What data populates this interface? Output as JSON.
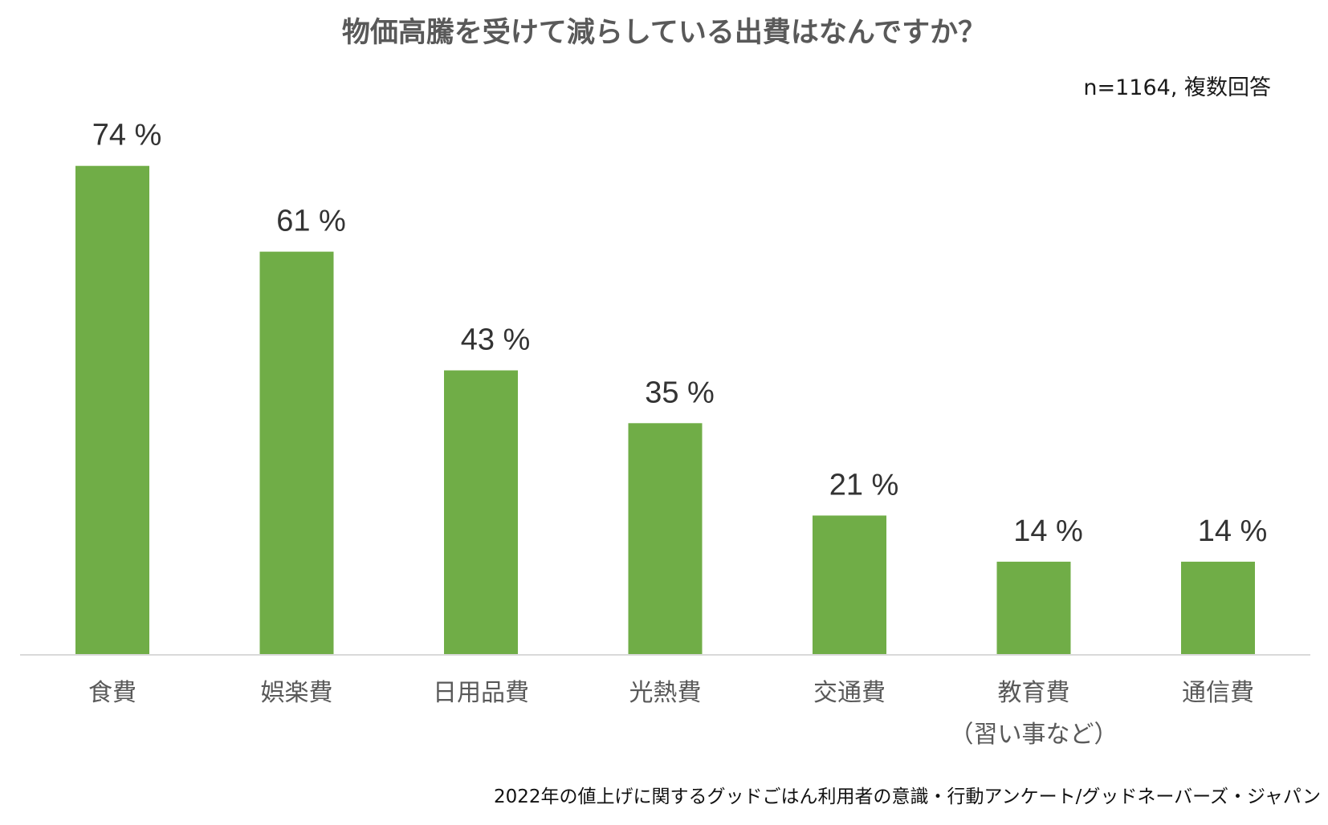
{
  "chart_data": {
    "type": "bar",
    "title": "物価高騰を受けて減らしている出費はなんですか？",
    "note": "n=1164, 複数回答",
    "categories": [
      [
        "食費"
      ],
      [
        "娯楽費"
      ],
      [
        "日用品費"
      ],
      [
        "光熱費"
      ],
      [
        "交通費"
      ],
      [
        "教育費",
        "（習い事など）"
      ],
      [
        "通信費"
      ]
    ],
    "values": [
      74,
      61,
      43,
      35,
      21,
      14,
      14
    ],
    "value_labels": [
      "74 %",
      "61 %",
      "43 %",
      "35 %",
      "21 %",
      "14 %",
      "14 %"
    ],
    "unit": "%",
    "ylim": [
      0,
      80
    ],
    "grid": false,
    "legend": "none",
    "source": "2022年の値上げに関するグッドごはん利用者の意識・行動アンケート/グッドネーバーズ・ジャパン",
    "colors": {
      "bar": "#70ad47",
      "axis": "#d9d9d9",
      "title": "#595959",
      "category_text": "#595959",
      "label_text": "#333333"
    }
  }
}
